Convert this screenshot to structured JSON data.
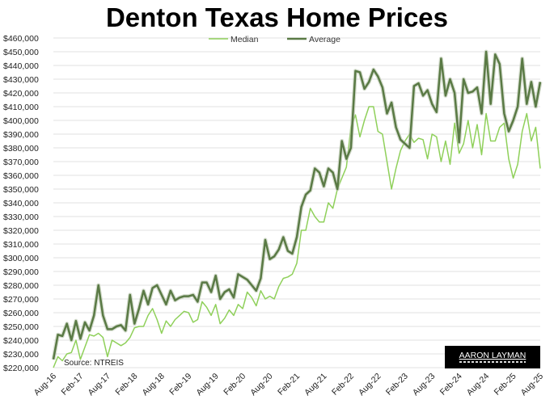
{
  "chart_data": {
    "type": "line",
    "title": "Denton Texas Home Prices",
    "source": "Source: NTREIS",
    "logo_text": "AARON LAYMAN",
    "x_tick_labels": [
      "Aug-16",
      "Feb-17",
      "Aug-17",
      "Feb-18",
      "Aug-18",
      "Feb-19",
      "Aug-19",
      "Feb-20",
      "Aug-20",
      "Feb-21",
      "Aug-21",
      "Feb-22",
      "Aug-22",
      "Feb-23",
      "Aug-23",
      "Feb-24",
      "Aug-24",
      "Feb-25",
      "Aug-25"
    ],
    "y_tick_labels": [
      "$220,000",
      "$230,000",
      "$240,000",
      "$250,000",
      "$260,000",
      "$270,000",
      "$280,000",
      "$290,000",
      "$300,000",
      "$310,000",
      "$320,000",
      "$330,000",
      "$340,000",
      "$350,000",
      "$360,000",
      "$370,000",
      "$380,000",
      "$390,000",
      "$400,000",
      "$410,000",
      "$420,000",
      "$430,000",
      "$440,000",
      "$450,000",
      "$460,000"
    ],
    "ylim": [
      220000,
      460000
    ],
    "grid": true,
    "legend_placement": "top-center",
    "series": [
      {
        "name": "Median",
        "color": "#8fd05a",
        "values": [
          220,
          228,
          225,
          230,
          231,
          240,
          226,
          235,
          244,
          243,
          245,
          242,
          228,
          240,
          238,
          236,
          238,
          242,
          249,
          250,
          250,
          258,
          263,
          255,
          245,
          254,
          250,
          255,
          258,
          261,
          260,
          253,
          255,
          268,
          264,
          258,
          266,
          252,
          256,
          262,
          258,
          266,
          263,
          275,
          271,
          265,
          276,
          270,
          272,
          270,
          279,
          285,
          286,
          288,
          296,
          320,
          320,
          336,
          330,
          326,
          326,
          340,
          336,
          350,
          358,
          366,
          395,
          404,
          388,
          400,
          410,
          410,
          392,
          390,
          370,
          350,
          365,
          378,
          385,
          390,
          384,
          387,
          386,
          372,
          390,
          388,
          370,
          385,
          368,
          398,
          376,
          383,
          400,
          380,
          397,
          375,
          405,
          385,
          385,
          395,
          398,
          372,
          358,
          368,
          392,
          405,
          385,
          395,
          365
        ]
      },
      {
        "name": "Average",
        "color": "#5a7a45",
        "values": [
          226,
          244,
          243,
          252,
          240,
          254,
          241,
          253,
          247,
          258,
          280,
          258,
          248,
          248,
          250,
          251,
          247,
          273,
          252,
          263,
          276,
          266,
          278,
          280,
          273,
          266,
          276,
          269,
          271,
          272,
          272,
          273,
          268,
          282,
          282,
          275,
          287,
          270,
          275,
          277,
          271,
          288,
          286,
          284,
          280,
          276,
          285,
          313,
          299,
          301,
          306,
          315,
          305,
          303,
          315,
          337,
          346,
          349,
          365,
          362,
          352,
          365,
          362,
          350,
          385,
          372,
          380,
          436,
          435,
          423,
          428,
          437,
          432,
          424,
          405,
          413,
          395,
          386,
          383,
          380,
          425,
          427,
          418,
          422,
          412,
          406,
          445,
          418,
          430,
          420,
          384,
          430,
          420,
          421,
          424,
          405,
          450,
          412,
          448,
          441,
          405,
          392,
          400,
          410,
          445,
          412,
          428,
          410,
          428
        ]
      }
    ],
    "value_unit_note": "values in thousands of dollars"
  }
}
